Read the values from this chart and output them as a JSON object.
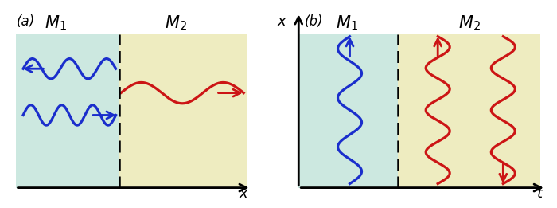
{
  "fig_width": 7.0,
  "fig_height": 2.61,
  "dpi": 100,
  "color_blue": "#1a2ecc",
  "color_red": "#cc1515",
  "color_m1_bg": "#cce8e0",
  "color_m2_bg": "#eeecc0",
  "panel_a_label": "(a)",
  "panel_b_label": "(b)",
  "m1_label": "$M_1$",
  "m2_label": "$M_2$",
  "xlabel_a": "x",
  "ylabel_b": "x",
  "xaxislabel_b": "t"
}
